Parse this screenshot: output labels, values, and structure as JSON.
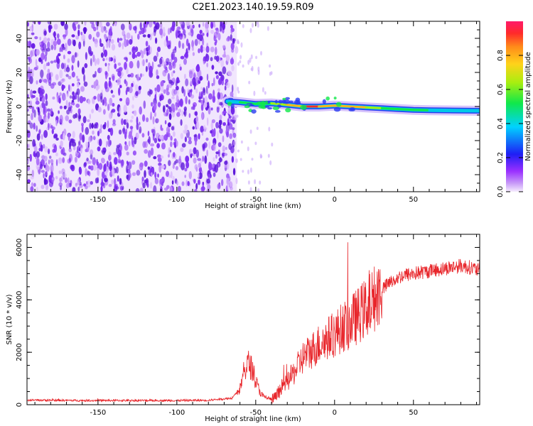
{
  "title": "C2E1.2023.140.19.59.R09",
  "colors": {
    "snr_line": "#e8262b",
    "axis": "#000000",
    "spectrogram_noise": "#7a2cf0",
    "spectrogram_peak": "#e8262b"
  },
  "chart_data": [
    {
      "type": "heatmap",
      "xlabel": "Height of straight line (km)",
      "ylabel": "Frequency (Hz)",
      "xlim": [
        -195,
        92
      ],
      "ylim": [
        -50,
        50
      ],
      "xticks": [
        "-150",
        "-100",
        "-50",
        "0",
        "50"
      ],
      "yticks": [
        "-40",
        "-20",
        "0",
        "20",
        "40"
      ],
      "grid": false,
      "colorbar": {
        "label": "Normalized spectral amplitude",
        "range": [
          0,
          1
        ],
        "ticks": [
          "0.0",
          "0.2",
          "0.4",
          "0.6",
          "0.8"
        ],
        "colormap": [
          "#f6ecfe",
          "#9b30ff",
          "#1e1ef5",
          "#00d2ff",
          "#10e84a",
          "#a8ee10",
          "#ffd21a",
          "#ff8c1a",
          "#ff2a2a",
          "#ff1a6a"
        ]
      },
      "noise_region": {
        "x_range": [
          -195,
          -62
        ],
        "y_range": [
          -50,
          50
        ]
      },
      "signal_trace": {
        "x": [
          -68,
          -60,
          -50,
          -40,
          -30,
          -20,
          -10,
          0,
          10,
          20,
          30,
          40,
          50,
          60,
          70,
          80,
          92
        ],
        "y": [
          3.0,
          2.5,
          1.5,
          1.8,
          1.0,
          0.0,
          0.0,
          0.5,
          0.0,
          -0.5,
          -1.0,
          -1.5,
          -2.0,
          -2.2,
          -2.3,
          -2.4,
          -2.5
        ],
        "amplitude": [
          0.35,
          0.45,
          0.5,
          0.55,
          0.6,
          0.95,
          0.9,
          0.75,
          0.9,
          0.6,
          0.55,
          0.5,
          0.5,
          0.45,
          0.45,
          0.4,
          0.35
        ]
      }
    },
    {
      "type": "line",
      "xlabel": "Height of straight line (km)",
      "ylabel": "SNR (10 * v/v)",
      "xlim": [
        -195,
        92
      ],
      "ylim": [
        0,
        6500
      ],
      "xticks": [
        "-150",
        "-100",
        "-50",
        "0",
        "50"
      ],
      "yticks": [
        "0",
        "2000",
        "4000",
        "6000"
      ],
      "grid": false,
      "series": [
        {
          "x": [
            -195,
            -180,
            -160,
            -140,
            -120,
            -100,
            -80,
            -65,
            -60,
            -57,
            -55,
            -52,
            -50,
            -47,
            -45,
            -42,
            -40,
            -37,
            -35,
            -32,
            -30,
            -27,
            -25,
            -22,
            -20,
            -15,
            -10,
            -5,
            0,
            5,
            10,
            15,
            20,
            25,
            30,
            35,
            40,
            45,
            50,
            55,
            60,
            65,
            70,
            75,
            80,
            85,
            88,
            92
          ],
          "y": [
            180,
            170,
            160,
            160,
            160,
            160,
            170,
            250,
            600,
            1300,
            1600,
            1350,
            900,
            450,
            300,
            250,
            200,
            300,
            550,
            750,
            900,
            1100,
            1300,
            1600,
            1800,
            2050,
            2300,
            2500,
            2700,
            2950,
            3150,
            3400,
            3700,
            4050,
            4400,
            4650,
            4850,
            4950,
            5000,
            5050,
            5100,
            5150,
            5200,
            5250,
            5300,
            5250,
            5200,
            5100
          ]
        }
      ]
    }
  ]
}
